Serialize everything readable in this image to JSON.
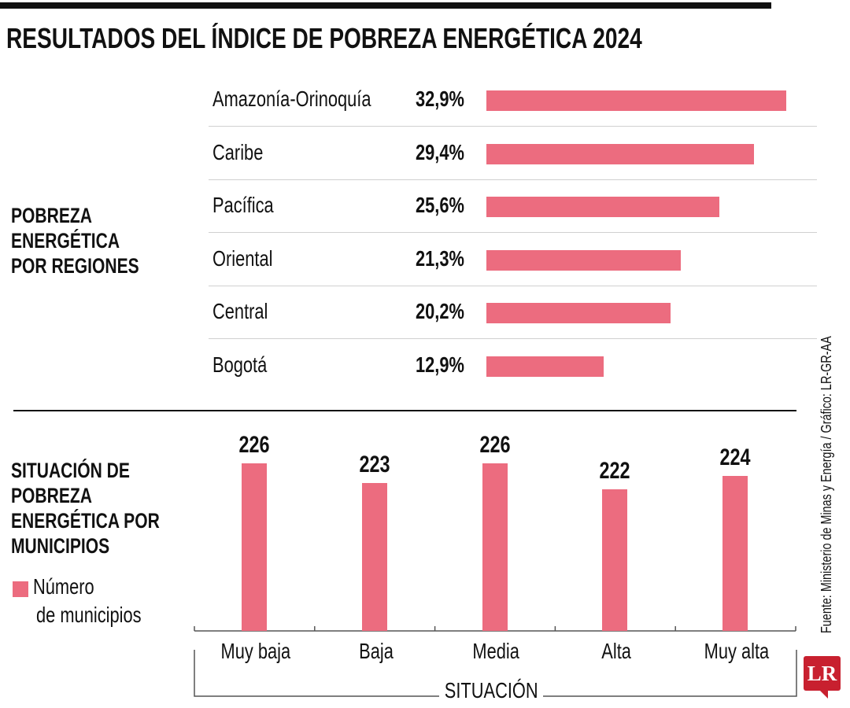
{
  "title": "RESULTADOS DEL ÍNDICE DE POBREZA ENERGÉTICA 2024",
  "source": "Fuente: Ministerio de Minas y Energía / Gráfico: LR-GR-AA",
  "logo": "LR",
  "colors": {
    "bar": "#ec6c7f",
    "logo": "#c8202f"
  },
  "chart_data": [
    {
      "type": "bar",
      "orientation": "horizontal",
      "title": "POBREZA ENERGÉTICA POR REGIONES",
      "categories": [
        "Amazonía-Orinoquía",
        "Caribe",
        "Pacífica",
        "Oriental",
        "Central",
        "Bogotá"
      ],
      "values": [
        32.9,
        29.4,
        25.6,
        21.3,
        20.2,
        12.9
      ],
      "labels": [
        "32,9%",
        "29,4%",
        "25,6%",
        "21,3%",
        "20,2%",
        "12,9%"
      ],
      "unit": "%",
      "xlim": [
        0,
        32.9
      ]
    },
    {
      "type": "bar",
      "orientation": "vertical",
      "title": "SITUACIÓN DE POBREZA ENERGÉTICA POR MUNICIPIOS",
      "legend": "Número de municipios",
      "legend_lines": [
        "Número",
        "de municipios"
      ],
      "xlabel": "SITUACIÓN",
      "categories": [
        "Muy baja",
        "Baja",
        "Media",
        "Alta",
        "Muy alta"
      ],
      "values": [
        226,
        223,
        226,
        222,
        224
      ],
      "labels": [
        "226",
        "223",
        "226",
        "222",
        "224"
      ],
      "ylim": [
        200,
        226
      ]
    }
  ]
}
